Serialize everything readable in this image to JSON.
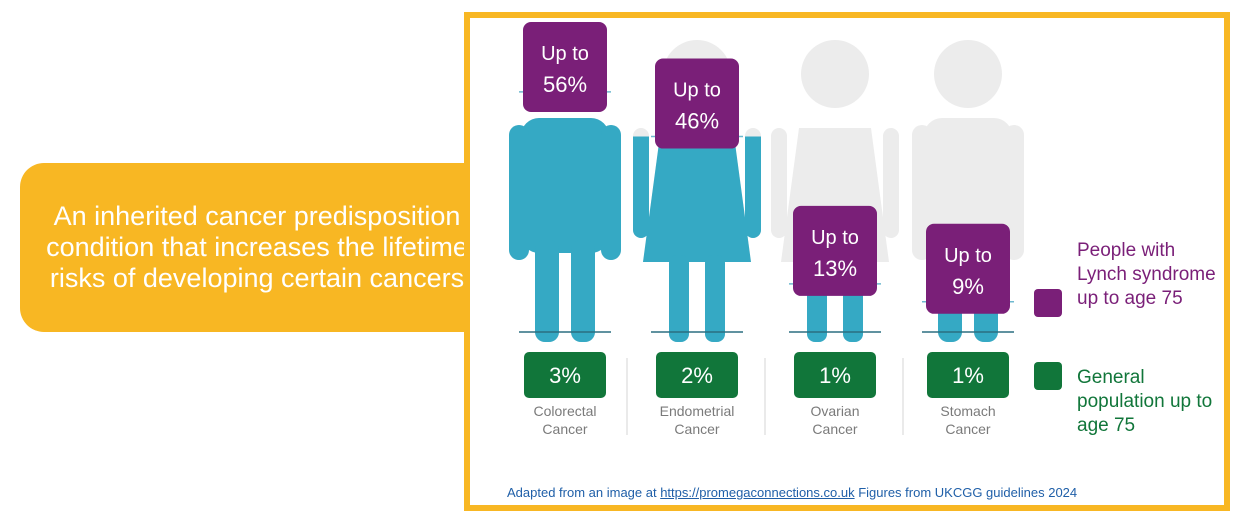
{
  "callout": {
    "text": "An inherited cancer predisposition condition that increases the lifetime risks of developing certain cancers"
  },
  "chart_data": {
    "type": "bar",
    "categories": [
      "Colorectal Cancer",
      "Endometrial Cancer",
      "Ovarian Cancer",
      "Stomach Cancer"
    ],
    "series": [
      {
        "name": "People with Lynch syndrome up to age 75",
        "values": [
          56,
          46,
          13,
          9
        ],
        "labels": [
          "Up to 56%",
          "Up to 46%",
          "Up to 13%",
          "Up to 9%"
        ],
        "color": "#7a1f78"
      },
      {
        "name": "General population up to age 75",
        "values": [
          3,
          2,
          1,
          1
        ],
        "labels": [
          "3%",
          "2%",
          "1%",
          "1%"
        ],
        "color": "#11763a"
      }
    ],
    "unit": "%",
    "figure_colors": {
      "filled": "#35a9c4",
      "empty": "#ececec"
    }
  },
  "legend": {
    "lynch": "People with Lynch syndrome up to age 75",
    "general": "General population up to age 75"
  },
  "footer": {
    "prefix": "Adapted from an image at ",
    "link": "https://promegaconnections.co.uk",
    "suffix": " Figures from UKCGG guidelines 2024"
  }
}
